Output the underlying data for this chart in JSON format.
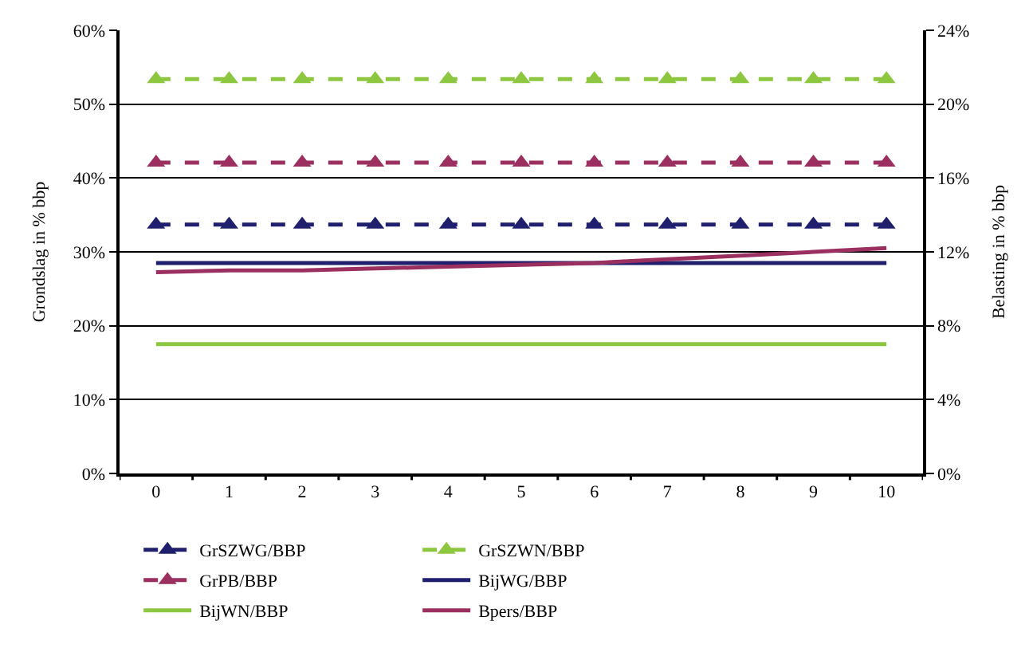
{
  "chart_data": {
    "type": "line",
    "ylabel": "Grondslag in % bbp",
    "y2label": "Belasting in % bbp",
    "categories": [
      "0",
      "1",
      "2",
      "3",
      "4",
      "5",
      "6",
      "7",
      "8",
      "9",
      "10"
    ],
    "ylim": [
      0,
      60
    ],
    "yticks": [
      {
        "value": 0,
        "label": "0%"
      },
      {
        "value": 10,
        "label": "10%"
      },
      {
        "value": 20,
        "label": "20%"
      },
      {
        "value": 30,
        "label": "30%"
      },
      {
        "value": 40,
        "label": "40%"
      },
      {
        "value": 50,
        "label": "50%"
      },
      {
        "value": 60,
        "label": "60%"
      }
    ],
    "y2lim": [
      0,
      24
    ],
    "y2ticks": [
      {
        "value": 0,
        "label": "0%"
      },
      {
        "value": 4,
        "label": "4%"
      },
      {
        "value": 8,
        "label": "8%"
      },
      {
        "value": 12,
        "label": "12%"
      },
      {
        "value": 16,
        "label": "16%"
      },
      {
        "value": 20,
        "label": "20%"
      },
      {
        "value": 24,
        "label": "24%"
      }
    ],
    "grid": "y",
    "legend": "bottom",
    "series": [
      {
        "name": "GrSZWG/BBP",
        "color": "#1f1f6e",
        "marker": "triangle",
        "line_style": "dashed",
        "values": [
          33.7,
          33.7,
          33.7,
          33.7,
          33.7,
          33.7,
          33.7,
          33.7,
          33.7,
          33.7,
          33.7
        ]
      },
      {
        "name": "GrSZWN/BBP",
        "color": "#8dc63f",
        "marker": "triangle",
        "line_style": "dashed",
        "values": [
          53.4,
          53.4,
          53.4,
          53.4,
          53.4,
          53.4,
          53.4,
          53.4,
          53.4,
          53.4,
          53.4
        ]
      },
      {
        "name": "GrPB/BBP",
        "color": "#9b2f60",
        "marker": "triangle",
        "line_style": "dashed",
        "values": [
          42.1,
          42.1,
          42.1,
          42.1,
          42.1,
          42.1,
          42.1,
          42.1,
          42.1,
          42.1,
          42.1
        ]
      },
      {
        "name": "BijWG/BBP",
        "color": "#1f1f6e",
        "marker": "none",
        "line_style": "solid",
        "axis": "y2",
        "values": [
          11.4,
          11.4,
          11.4,
          11.4,
          11.4,
          11.4,
          11.4,
          11.4,
          11.4,
          11.4,
          11.4
        ]
      },
      {
        "name": "BijWN/BBP",
        "color": "#8dc63f",
        "marker": "none",
        "line_style": "solid",
        "axis": "y2",
        "values": [
          7.0,
          7.0,
          7.0,
          7.0,
          7.0,
          7.0,
          7.0,
          7.0,
          7.0,
          7.0,
          7.0
        ]
      },
      {
        "name": "Bpers/BBP",
        "color": "#9b2f60",
        "marker": "none",
        "line_style": "solid",
        "axis": "y2",
        "values": [
          10.9,
          11.0,
          11.0,
          11.1,
          11.2,
          11.3,
          11.4,
          11.6,
          11.8,
          12.0,
          12.2
        ]
      }
    ]
  }
}
